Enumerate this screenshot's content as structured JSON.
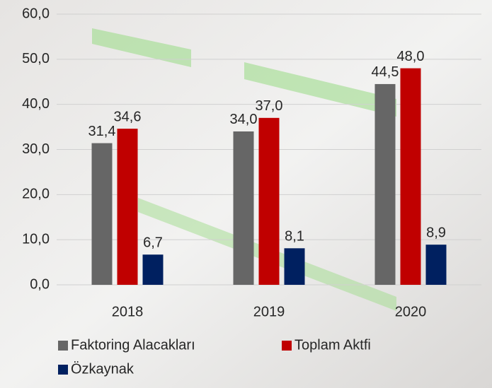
{
  "chart_data": {
    "type": "bar",
    "categories": [
      "2018",
      "2019",
      "2020"
    ],
    "series": [
      {
        "name": "Faktoring Alacakları",
        "color": "#666666",
        "values": [
          31.4,
          34.0,
          44.5
        ],
        "value_labels": [
          "31,4",
          "34,0",
          "44,5"
        ]
      },
      {
        "name": "Toplam Aktfi",
        "color": "#c00000",
        "values": [
          34.6,
          37.0,
          48.0
        ],
        "value_labels": [
          "34,6",
          "37,0",
          "48,0"
        ]
      },
      {
        "name": "Özkaynak",
        "color": "#002060",
        "values": [
          6.7,
          8.1,
          8.9
        ],
        "value_labels": [
          "6,7",
          "8,1",
          "8,9"
        ]
      }
    ],
    "ylim": [
      0,
      60
    ],
    "yticks": [
      {
        "value": 0,
        "label": "0,0"
      },
      {
        "value": 10,
        "label": "10,0"
      },
      {
        "value": 20,
        "label": "20,0"
      },
      {
        "value": 30,
        "label": "30,0"
      },
      {
        "value": 40,
        "label": "40,0"
      },
      {
        "value": 50,
        "label": "50,0"
      },
      {
        "value": 60,
        "label": "60,0"
      }
    ],
    "grid": true
  }
}
